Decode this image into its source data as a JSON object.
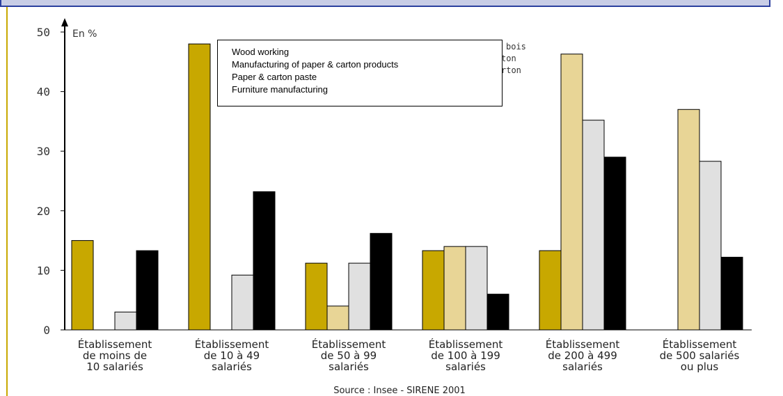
{
  "chart_data": {
    "type": "bar",
    "unit_label": "En %",
    "ylim": [
      0,
      50
    ],
    "yticks": [
      0,
      10,
      20,
      30,
      40,
      50
    ],
    "categories": [
      [
        "Établissement",
        "de moins de",
        "10 salariés"
      ],
      [
        "Établissement",
        "de 10 à 49",
        "salariés"
      ],
      [
        "Établissement",
        "de 50 à 99",
        "salariés"
      ],
      [
        "Établissement",
        "de 100 à 199",
        "salariés"
      ],
      [
        "Établissement",
        "de 200 à 499",
        "salariés"
      ],
      [
        "Établissement",
        "de 500 salariés",
        "ou plus"
      ]
    ],
    "series": [
      {
        "name": "Wood working",
        "color": "#c8a800",
        "values": [
          15,
          48,
          11.2,
          13.3,
          13.3,
          0
        ]
      },
      {
        "name": "Manufacturing of paper & carton products",
        "color": "#e8d596",
        "values": [
          0,
          0,
          4,
          14,
          46.3,
          37
        ]
      },
      {
        "name": "Paper & carton paste",
        "color": "#e0e0e0",
        "values": [
          3,
          9.2,
          11.2,
          14,
          35.2,
          28.3
        ]
      },
      {
        "name": "Furniture manufacturing",
        "color": "#000000",
        "values": [
          13.3,
          23.2,
          16.2,
          6,
          29,
          12.2
        ]
      }
    ],
    "legend_position": "top-center",
    "source": "Source : Insee - SIRENE 2001"
  },
  "behind_legend_text": [
    "bois",
    "ton",
    "rton"
  ]
}
